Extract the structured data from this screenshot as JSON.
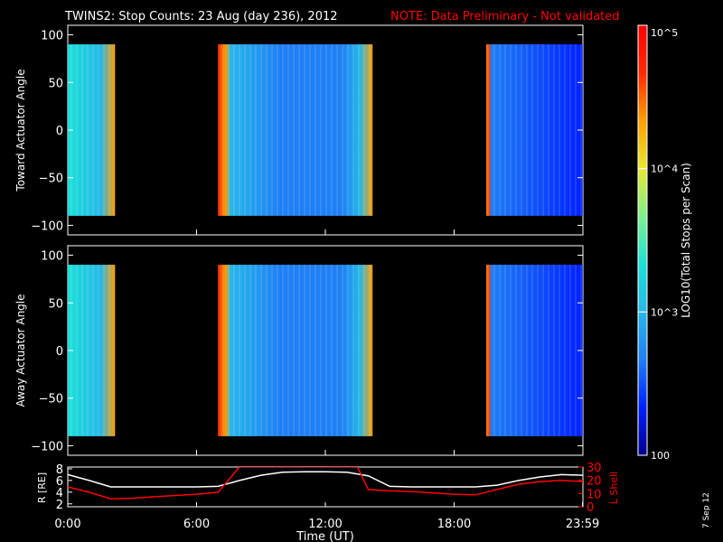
{
  "header": {
    "title": "TWINS2: Stop Counts: 23 Aug (day 236), 2012",
    "note": "NOTE: Data Preliminary - Not validated"
  },
  "stamp": "7 Sep 12",
  "colorbar": {
    "scale": "log",
    "label": "LOG10(Total Stops per Scan)",
    "ticks": [
      "100",
      "10^3",
      "10^4",
      "10^5"
    ],
    "colormap": [
      "#00008c",
      "#0020ff",
      "#1f7ff5",
      "#27b8e8",
      "#1ce0d8",
      "#7ef08c",
      "#e8e830",
      "#ff9f00",
      "#ff2a00",
      "#ff0000"
    ]
  },
  "colors": {
    "r_line": "#ffffff",
    "lshell_line": "#ff0000",
    "note": "#ff0000"
  },
  "chart_data": [
    {
      "type": "heatmap",
      "panel": "top",
      "ylabel": "Toward Actuator Angle",
      "ylim": [
        -110,
        110
      ],
      "yticks": [
        "100",
        "50",
        "0",
        "−50",
        "−100"
      ],
      "data_blocks_hours": [
        [
          0.0,
          2.2
        ],
        [
          7.0,
          14.2
        ],
        [
          19.5,
          23.99
        ]
      ],
      "angle_range": [
        -90,
        90
      ]
    },
    {
      "type": "heatmap",
      "panel": "middle",
      "ylabel": "Away Actuator Angle",
      "ylim": [
        -110,
        110
      ],
      "yticks": [
        "100",
        "50",
        "0",
        "−50",
        "−100"
      ],
      "data_blocks_hours": [
        [
          0.0,
          2.2
        ],
        [
          7.0,
          14.2
        ],
        [
          19.5,
          23.99
        ]
      ],
      "angle_range": [
        -90,
        90
      ]
    },
    {
      "type": "line",
      "panel": "bottom",
      "xlabel": "Time (UT)",
      "xticks": [
        "0:00",
        "6:00",
        "12:00",
        "18:00",
        "23:59"
      ],
      "ylabel_left": "R [RE]",
      "yticks_left": [
        "8",
        "6",
        "4",
        "2"
      ],
      "ylim_left": [
        1.5,
        8.3
      ],
      "ylabel_right": "L Shell",
      "yticks_right": [
        "30",
        "20",
        "10",
        "0"
      ],
      "ylim_right": [
        0,
        30
      ],
      "series": [
        {
          "name": "R",
          "axis": "left",
          "x": [
            0,
            1,
            2,
            3,
            4,
            5,
            6,
            7,
            8,
            9,
            10,
            11,
            12,
            13,
            14,
            15,
            16,
            17,
            18,
            19,
            20,
            21,
            22,
            23,
            24
          ],
          "y": [
            7.0,
            6.0,
            4.9,
            4.9,
            4.9,
            4.9,
            4.9,
            5.0,
            6.0,
            6.9,
            7.4,
            7.5,
            7.5,
            7.4,
            6.8,
            5.0,
            4.9,
            4.9,
            4.9,
            4.9,
            5.2,
            6.0,
            6.6,
            7.0,
            6.9
          ]
        },
        {
          "name": "L Shell",
          "axis": "right",
          "x": [
            0,
            1,
            2,
            3,
            4,
            5,
            6,
            7,
            8,
            13.5,
            14,
            15,
            16,
            17,
            18,
            19,
            20,
            21,
            22,
            23,
            24
          ],
          "y": [
            15,
            11,
            6,
            6.5,
            7.5,
            8.5,
            9.5,
            11,
            30,
            30,
            13,
            12,
            11.5,
            10.5,
            9.5,
            9,
            13,
            17,
            19,
            20,
            19
          ]
        }
      ]
    }
  ]
}
